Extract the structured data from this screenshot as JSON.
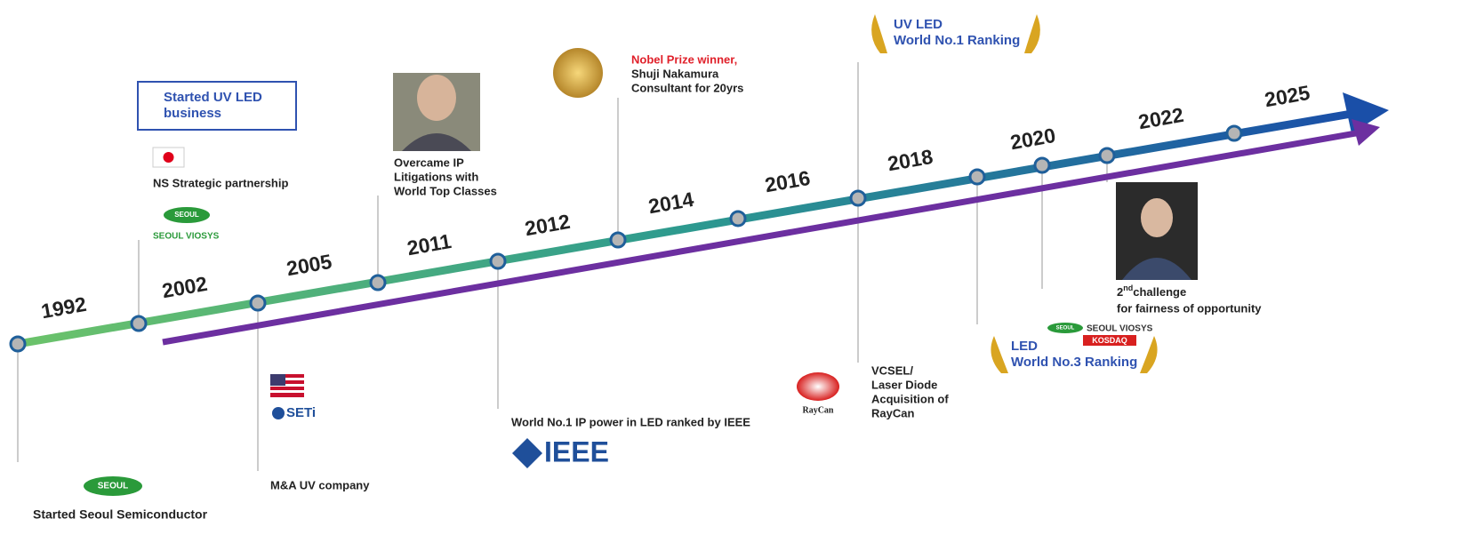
{
  "years": [
    "1992",
    "2002",
    "2005",
    "2011",
    "2012",
    "2014",
    "2016",
    "2018",
    "2020",
    "2022",
    "2025"
  ],
  "logos": {
    "seoul": "SEOUL",
    "viosys": "SEOUL VIOSYS",
    "seti": "SETi",
    "ieee": "IEEE",
    "raycan": "RayCan",
    "kosdaq": "KOSDAQ"
  },
  "events": [
    {
      "lines": [
        "Started Seoul Semiconductor"
      ]
    },
    {
      "title": [
        "Started UV LED",
        "business"
      ],
      "lines": [
        "NS Strategic partnership"
      ]
    },
    {
      "lines": [
        "M&A UV company"
      ]
    },
    {
      "lines": [
        "Overcame IP",
        "Litigations with",
        "World Top Classes"
      ]
    },
    {
      "lines": [
        "World No.1 IP power in LED ranked by IEEE"
      ]
    },
    {
      "lines": [
        "Nobel Prize winner,",
        "Shuji Nakamura",
        "Consultant for 20yrs"
      ]
    },
    {
      "lines": [
        "UV LED",
        "World No.1 Ranking"
      ]
    },
    {
      "lines": [
        "VCSEL/",
        "Laser Diode",
        "Acquisition of",
        "RayCan"
      ]
    },
    {
      "lines": [
        "LED",
        "World No.3 Ranking"
      ]
    },
    {
      "ordinal": "2",
      "suffix": "nd",
      "word": "challenge",
      "lines": [
        "for fairness of opportunity"
      ]
    }
  ]
}
